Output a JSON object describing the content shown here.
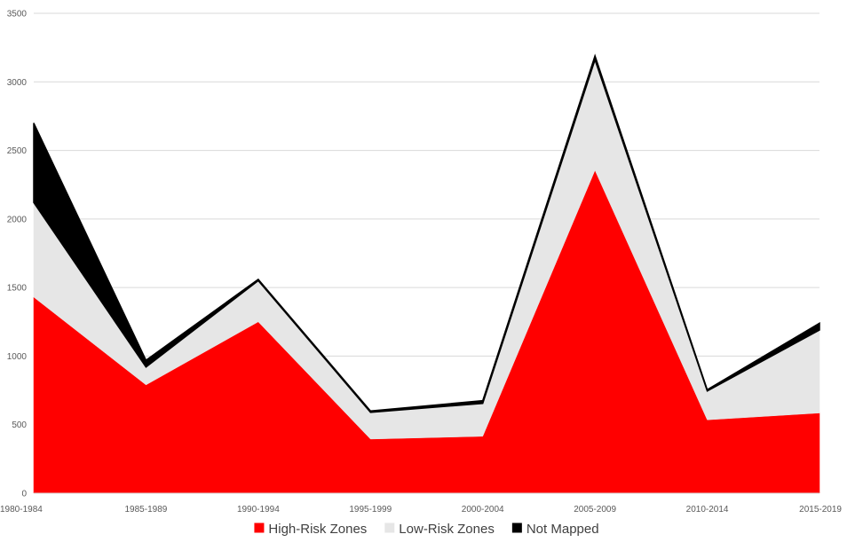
{
  "chart_data": {
    "type": "area",
    "stacked": true,
    "categories": [
      "1980-1984",
      "1985-1989",
      "1990-1994",
      "1995-1999",
      "2000-2004",
      "2005-2009",
      "2010-2014",
      "2015-2019"
    ],
    "series": [
      {
        "name": "High-Risk Zones",
        "color": "#ff0000",
        "values": [
          1430,
          790,
          1250,
          395,
          415,
          2355,
          535,
          585
        ]
      },
      {
        "name": "Low-Risk Zones",
        "color": "#e6e6e6",
        "values": [
          690,
          130,
          300,
          195,
          240,
          805,
          210,
          605
        ]
      },
      {
        "name": "Not Mapped",
        "color": "#000000",
        "values": [
          580,
          50,
          10,
          10,
          20,
          30,
          10,
          50
        ]
      }
    ],
    "y_ticks": [
      0,
      500,
      1000,
      1500,
      2000,
      2500,
      3000,
      3500
    ],
    "ylim": [
      0,
      3500
    ],
    "grid": true,
    "legend_position": "bottom",
    "title": "",
    "xlabel": "",
    "ylabel": ""
  }
}
